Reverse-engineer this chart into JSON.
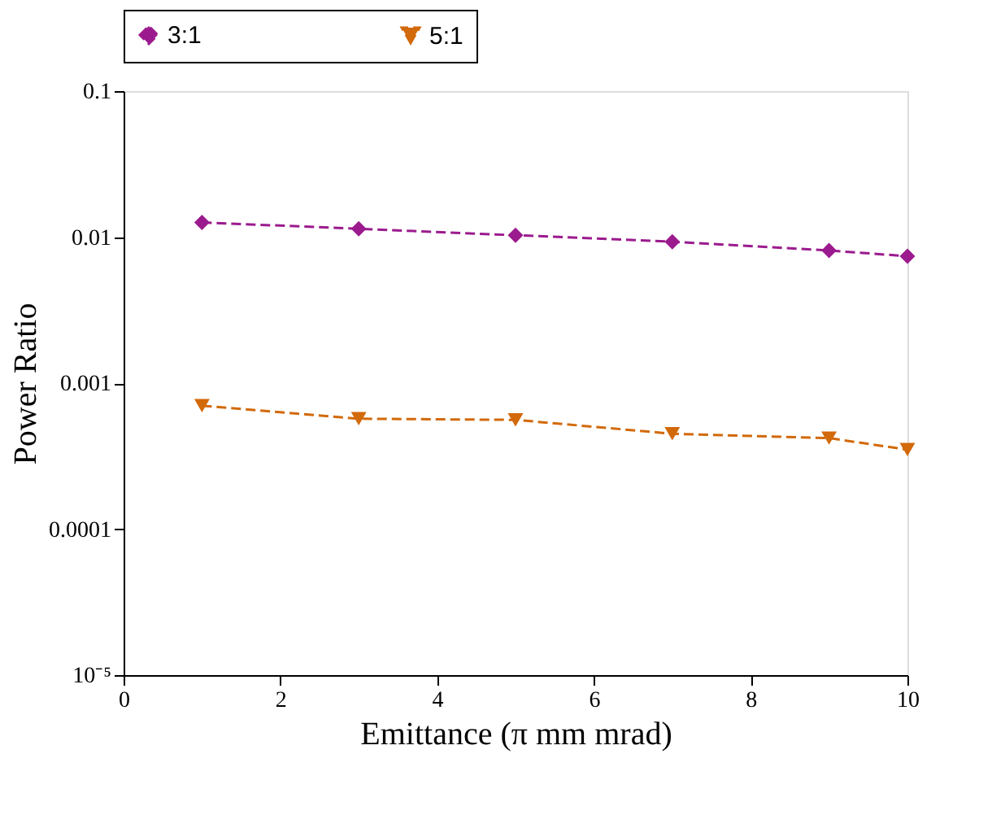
{
  "chart_data": {
    "type": "line",
    "xlabel": "Emittance (π mm mrad)",
    "ylabel": "Power Ratio",
    "x": [
      1,
      3,
      5,
      7,
      9,
      10
    ],
    "series": [
      {
        "name": "3:1",
        "color": "#9b1b8e",
        "values": [
          0.0126,
          0.0114,
          0.0103,
          0.0093,
          0.0081,
          0.0074
        ],
        "marker": "diamond",
        "line_style": "dashed"
      },
      {
        "name": "5:1",
        "color": "#d2690a",
        "values": [
          0.0007,
          0.00057,
          0.00056,
          0.00045,
          0.00042,
          0.00035
        ],
        "marker": "triangle-down",
        "line_style": "dashed"
      }
    ],
    "log": "y",
    "xlim": [
      0,
      10
    ],
    "xticks": [
      0,
      2,
      4,
      6,
      8,
      10
    ],
    "ylim": [
      1e-05,
      0.1
    ],
    "yticks": [
      {
        "value": 1e-05,
        "label": "10⁻⁵"
      },
      0.0001,
      0.001,
      0.01,
      0.1
    ],
    "grid": false,
    "legend": "top"
  }
}
